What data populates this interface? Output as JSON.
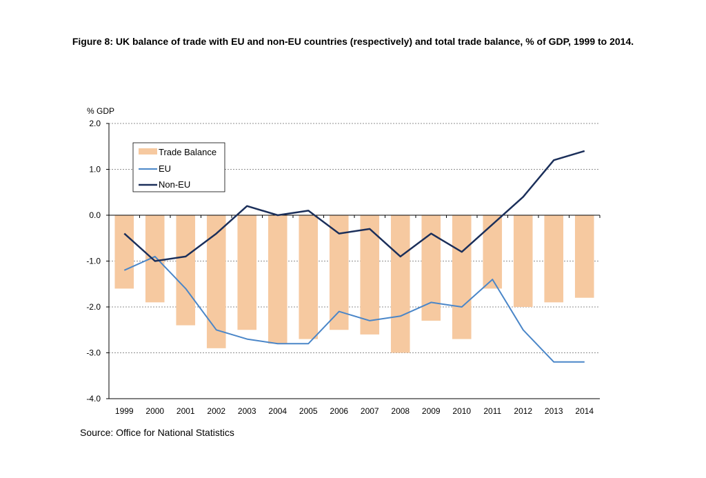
{
  "figure_title": "Figure 8: UK balance of trade with EU and non-EU countries (respectively) and total trade balance, % of GDP, 1999 to 2014.",
  "source": "Source: Office for National Statistics",
  "colors": {
    "trade_balance": "#f6c9a0",
    "eu": "#4a86c8",
    "non_eu": "#1b2f5a",
    "grid": "#8c8c8c"
  },
  "chart_data": {
    "type": "bar",
    "title": "Figure 8: UK balance of trade with EU and non-EU countries (respectively) and total trade balance, % of GDP, 1999 to 2014.",
    "xlabel": "",
    "ylabel": "% GDP",
    "ylim": [
      -4.0,
      2.0
    ],
    "yticks": [
      "2.0",
      "1.0",
      "0.0",
      "-1.0",
      "-2.0",
      "-3.0",
      "-4.0"
    ],
    "ytick_values": [
      2.0,
      1.0,
      0.0,
      -1.0,
      -2.0,
      -3.0,
      -4.0
    ],
    "grid": "horizontal-dotted",
    "legend_position": "top-left",
    "categories": [
      "1999",
      "2000",
      "2001",
      "2002",
      "2003",
      "2004",
      "2005",
      "2006",
      "2007",
      "2008",
      "2009",
      "2010",
      "2011",
      "2012",
      "2013",
      "2014"
    ],
    "series": [
      {
        "name": "Trade Balance",
        "type": "bar",
        "values": [
          -1.6,
          -1.9,
          -2.4,
          -2.9,
          -2.5,
          -2.8,
          -2.7,
          -2.5,
          -2.6,
          -3.0,
          -2.3,
          -2.7,
          -1.6,
          -2.0,
          -1.9,
          -1.8
        ]
      },
      {
        "name": "EU",
        "type": "line",
        "values": [
          -1.2,
          -0.9,
          -1.6,
          -2.5,
          -2.7,
          -2.8,
          -2.8,
          -2.1,
          -2.3,
          -2.2,
          -1.9,
          -2.0,
          -1.4,
          -2.5,
          -3.2,
          -3.2
        ]
      },
      {
        "name": "Non-EU",
        "type": "line",
        "values": [
          -0.4,
          -1.0,
          -0.9,
          -0.4,
          0.2,
          0.0,
          0.1,
          -0.4,
          -0.3,
          -0.9,
          -0.4,
          -0.8,
          -0.2,
          0.4,
          1.2,
          1.4
        ]
      }
    ]
  }
}
